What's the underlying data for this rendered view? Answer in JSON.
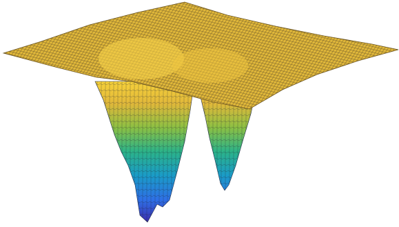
{
  "chart_data": {
    "type": "surface",
    "colormap": [
      "#3e26a8",
      "#2e6fe6",
      "#1a9bc8",
      "#2bb389",
      "#8cc043",
      "#e1b83a",
      "#f9d43a"
    ]
  }
}
